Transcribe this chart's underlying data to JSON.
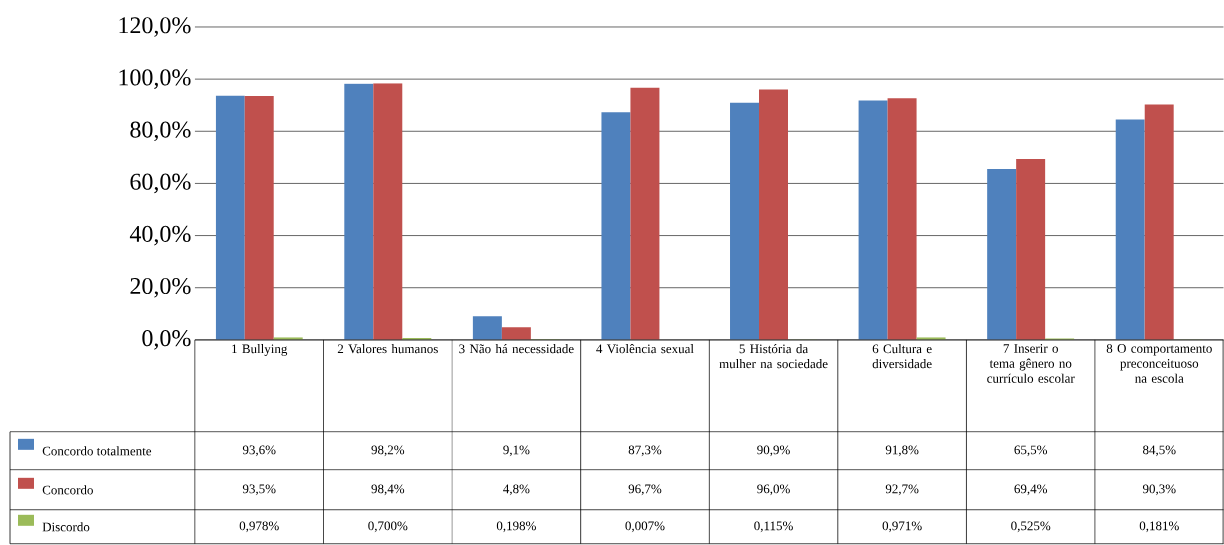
{
  "chart_data": {
    "type": "bar",
    "categories": [
      "1 Bullying",
      "2 Valores humanos",
      "3 Não há necessidade",
      "4 Violência sexual",
      "5 História da mulher na sociedade",
      "6 Cultura e diversidade",
      "7 Inserir o tema gênero no currículo escolar",
      "8 O comportamento preconceituoso na escola"
    ],
    "series": [
      {
        "name": "Concordo totalmente",
        "color": "#4f81bd",
        "values": [
          93.6,
          98.2,
          9.1,
          87.3,
          90.9,
          91.8,
          65.5,
          84.5
        ],
        "value_labels": [
          "93,6%",
          "98,2%",
          "9,1%",
          "87,3%",
          "90,9%",
          "91,8%",
          "65,5%",
          "84,5%"
        ]
      },
      {
        "name": "Concordo",
        "color": "#c0504d",
        "values": [
          93.5,
          98.4,
          4.8,
          96.7,
          96.0,
          92.7,
          69.4,
          90.3
        ],
        "value_labels": [
          "93,5%",
          "98,4%",
          "4,8%",
          "96,7%",
          "96,0%",
          "92,7%",
          "69,4%",
          "90,3%"
        ]
      },
      {
        "name": "Discordo",
        "color": "#9bbb59",
        "values": [
          0.978,
          0.7,
          0.198,
          0.007,
          0.115,
          0.971,
          0.525,
          0.181
        ],
        "value_labels": [
          "0,978%",
          "0,700%",
          "0,198%",
          "0,007%",
          "0,115%",
          "0,971%",
          "0,525%",
          "0,181%"
        ]
      }
    ],
    "ylim": [
      0,
      120
    ],
    "yticks": [
      {
        "value": 0,
        "label": "0,0%"
      },
      {
        "value": 20,
        "label": "20,0%"
      },
      {
        "value": 40,
        "label": "40,0%"
      },
      {
        "value": 60,
        "label": "60,0%"
      },
      {
        "value": 80,
        "label": "80,0%"
      },
      {
        "value": 100,
        "label": "100,0%"
      },
      {
        "value": 120,
        "label": "120,0%"
      }
    ],
    "grid": "y",
    "legend": "bottom"
  }
}
